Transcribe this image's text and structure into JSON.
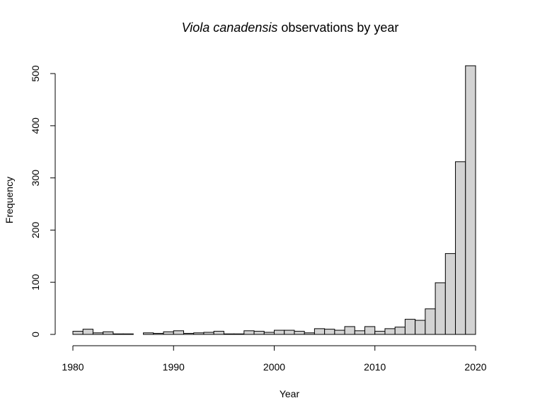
{
  "chart_data": {
    "type": "bar",
    "title_italic": "Viola canadensis",
    "title_rest": " observations by year",
    "xlabel": "Year",
    "ylabel": "Frequency",
    "xlim": [
      1980,
      2020
    ],
    "ylim": [
      0,
      515
    ],
    "x_ticks": [
      1980,
      1990,
      2000,
      2010,
      2020
    ],
    "y_ticks": [
      0,
      100,
      200,
      300,
      400,
      500
    ],
    "bin_width": 1,
    "bins": [
      {
        "start": 1980,
        "end": 1981,
        "value": 6
      },
      {
        "start": 1981,
        "end": 1982,
        "value": 10
      },
      {
        "start": 1982,
        "end": 1983,
        "value": 3
      },
      {
        "start": 1983,
        "end": 1984,
        "value": 5
      },
      {
        "start": 1984,
        "end": 1985,
        "value": 1
      },
      {
        "start": 1985,
        "end": 1986,
        "value": 1
      },
      {
        "start": 1986,
        "end": 1987,
        "value": 0
      },
      {
        "start": 1987,
        "end": 1988,
        "value": 3
      },
      {
        "start": 1988,
        "end": 1989,
        "value": 2
      },
      {
        "start": 1989,
        "end": 1990,
        "value": 5
      },
      {
        "start": 1990,
        "end": 1991,
        "value": 7
      },
      {
        "start": 1991,
        "end": 1992,
        "value": 2
      },
      {
        "start": 1992,
        "end": 1993,
        "value": 3
      },
      {
        "start": 1993,
        "end": 1994,
        "value": 4
      },
      {
        "start": 1994,
        "end": 1995,
        "value": 6
      },
      {
        "start": 1995,
        "end": 1996,
        "value": 1
      },
      {
        "start": 1996,
        "end": 1997,
        "value": 1
      },
      {
        "start": 1997,
        "end": 1998,
        "value": 7
      },
      {
        "start": 1998,
        "end": 1999,
        "value": 6
      },
      {
        "start": 1999,
        "end": 2000,
        "value": 4
      },
      {
        "start": 2000,
        "end": 2001,
        "value": 8
      },
      {
        "start": 2001,
        "end": 2002,
        "value": 8
      },
      {
        "start": 2002,
        "end": 2003,
        "value": 6
      },
      {
        "start": 2003,
        "end": 2004,
        "value": 3
      },
      {
        "start": 2004,
        "end": 2005,
        "value": 11
      },
      {
        "start": 2005,
        "end": 2006,
        "value": 10
      },
      {
        "start": 2006,
        "end": 2007,
        "value": 8
      },
      {
        "start": 2007,
        "end": 2008,
        "value": 15
      },
      {
        "start": 2008,
        "end": 2009,
        "value": 7
      },
      {
        "start": 2009,
        "end": 2010,
        "value": 15
      },
      {
        "start": 2010,
        "end": 2011,
        "value": 6
      },
      {
        "start": 2011,
        "end": 2012,
        "value": 11
      },
      {
        "start": 2012,
        "end": 2013,
        "value": 14
      },
      {
        "start": 2013,
        "end": 2014,
        "value": 29
      },
      {
        "start": 2014,
        "end": 2015,
        "value": 27
      },
      {
        "start": 2015,
        "end": 2016,
        "value": 49
      },
      {
        "start": 2016,
        "end": 2017,
        "value": 99
      },
      {
        "start": 2017,
        "end": 2018,
        "value": 155
      },
      {
        "start": 2018,
        "end": 2019,
        "value": 331
      },
      {
        "start": 2019,
        "end": 2020,
        "value": 515
      }
    ],
    "bar_fill": "#d3d3d3",
    "bar_stroke": "#000000",
    "grid": false,
    "legend": "none"
  }
}
